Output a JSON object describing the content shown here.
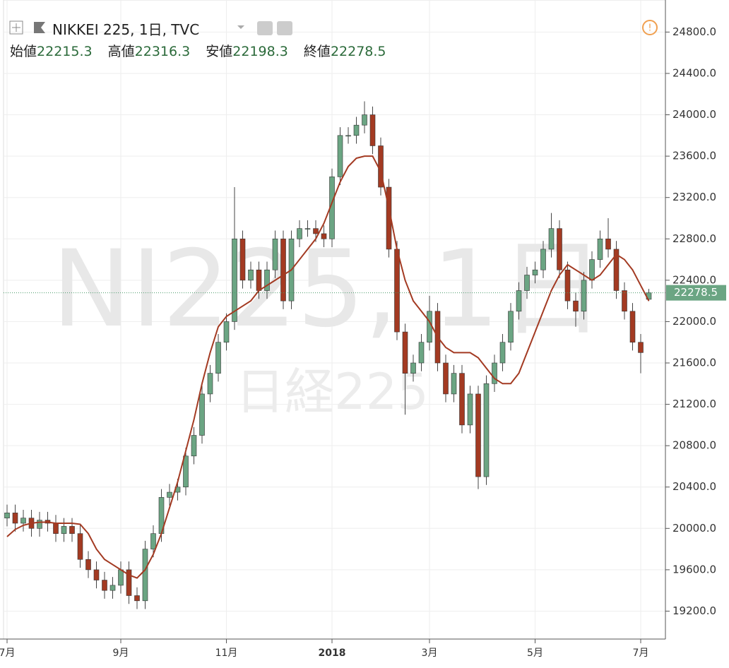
{
  "chart_data": {
    "type": "candlestick",
    "title": "NIKKEI 225, 1日, TVC",
    "ohlc_labels": {
      "open": "始値",
      "high": "高値",
      "low": "安値",
      "close": "終値"
    },
    "watermark": "NI225, 1日",
    "watermark_sub": "日経225",
    "up_color": "#6ba583",
    "down_color": "#a33a22",
    "categories": [
      "7月",
      null,
      null,
      null,
      null,
      null,
      null,
      null,
      null,
      null,
      null,
      null,
      null,
      null,
      "9月",
      null,
      null,
      null,
      null,
      null,
      null,
      null,
      null,
      null,
      null,
      null,
      null,
      "11月",
      null,
      null,
      null,
      null,
      null,
      null,
      null,
      null,
      null,
      null,
      null,
      null,
      "2018",
      null,
      null,
      null,
      null,
      null,
      null,
      null,
      null,
      null,
      null,
      null,
      "3月",
      null,
      null,
      null,
      null,
      null,
      null,
      null,
      null,
      null,
      null,
      null,
      null,
      "5月",
      null,
      null,
      null,
      null,
      null,
      null,
      null,
      null,
      null,
      null,
      null,
      null,
      "7月",
      null
    ],
    "open": [
      20100,
      20150,
      20050,
      20100,
      20000,
      20080,
      20050,
      19950,
      20020,
      19950,
      19700,
      19600,
      19500,
      19400,
      19450,
      19600,
      19350,
      19300,
      19800,
      19950,
      20300,
      20350,
      20400,
      20700,
      20900,
      21300,
      21500,
      21800,
      22000,
      22800,
      22400,
      22500,
      22300,
      22500,
      22800,
      22200,
      22800,
      22900,
      22900,
      22850,
      22800,
      23400,
      23800,
      23800,
      23900,
      24000,
      23700,
      23300,
      22700,
      21900,
      21500,
      21600,
      21800,
      22100,
      21600,
      21300,
      21500,
      21000,
      21300,
      20500,
      21400,
      21600,
      21800,
      22100,
      22300,
      22450,
      22500,
      22700,
      22900,
      22500,
      22200,
      22100,
      22400,
      22600,
      22800,
      22700,
      22300,
      22100,
      21800,
      22215.3
    ],
    "high": [
      20230,
      20230,
      20180,
      20180,
      20160,
      20160,
      20130,
      20100,
      20100,
      20030,
      19780,
      19680,
      19580,
      19530,
      19680,
      19680,
      19430,
      19880,
      20030,
      20380,
      20430,
      20480,
      20780,
      20980,
      21380,
      21580,
      21880,
      22080,
      23300,
      22880,
      22580,
      22580,
      22580,
      22880,
      22880,
      22880,
      22980,
      22980,
      22980,
      22930,
      23480,
      23880,
      23880,
      23980,
      24130,
      24080,
      23780,
      23380,
      22780,
      21980,
      21680,
      21880,
      22250,
      22180,
      21680,
      21580,
      21580,
      21380,
      21380,
      21480,
      21680,
      21880,
      22180,
      22380,
      22530,
      22580,
      22780,
      23050,
      22980,
      22580,
      22280,
      22480,
      22680,
      22880,
      23000,
      22780,
      22380,
      22180,
      21880,
      22316.3
    ],
    "low": [
      20020,
      19970,
      19970,
      19920,
      19920,
      19970,
      19870,
      19870,
      19870,
      19620,
      19520,
      19420,
      19320,
      19320,
      19370,
      19270,
      19220,
      19220,
      19720,
      19870,
      20220,
      20270,
      20320,
      20620,
      20820,
      21220,
      21420,
      21720,
      21920,
      22320,
      22320,
      22220,
      22220,
      22420,
      22120,
      22120,
      22720,
      22820,
      22770,
      22720,
      22720,
      23320,
      23720,
      23720,
      23820,
      23620,
      23220,
      22620,
      21820,
      21100,
      21420,
      21520,
      21720,
      21520,
      21220,
      21220,
      20920,
      20920,
      20380,
      20420,
      21320,
      21520,
      21720,
      22020,
      22220,
      22370,
      22420,
      22620,
      22420,
      22120,
      21950,
      22020,
      22320,
      22520,
      22620,
      22220,
      22020,
      21720,
      21500,
      22198.3
    ],
    "close": [
      20150,
      20050,
      20100,
      20000,
      20080,
      20050,
      19950,
      20020,
      19950,
      19700,
      19600,
      19500,
      19400,
      19450,
      19600,
      19350,
      19300,
      19800,
      19950,
      20300,
      20350,
      20400,
      20700,
      20900,
      21300,
      21500,
      21800,
      22000,
      22800,
      22400,
      22500,
      22300,
      22500,
      22800,
      22200,
      22800,
      22900,
      22900,
      22850,
      22800,
      23400,
      23800,
      23800,
      23900,
      24000,
      23700,
      23300,
      22700,
      21900,
      21500,
      21600,
      21800,
      22100,
      21600,
      21300,
      21500,
      21000,
      21300,
      20500,
      21400,
      21600,
      21800,
      22100,
      22300,
      22450,
      22500,
      22700,
      22900,
      22500,
      22200,
      22100,
      22400,
      22600,
      22800,
      22700,
      22300,
      22100,
      21800,
      21700,
      22278.5
    ],
    "ma": {
      "color": "#a33a22",
      "values": [
        19920,
        19990,
        20030,
        20050,
        20060,
        20060,
        20050,
        20050,
        20050,
        20040,
        19950,
        19800,
        19700,
        19650,
        19600,
        19550,
        19520,
        19600,
        19750,
        19950,
        20200,
        20450,
        20750,
        21050,
        21400,
        21700,
        21950,
        22050,
        22100,
        22150,
        22200,
        22300,
        22350,
        22400,
        22450,
        22500,
        22600,
        22700,
        22800,
        22950,
        23150,
        23350,
        23500,
        23580,
        23600,
        23600,
        23450,
        23100,
        22700,
        22400,
        22200,
        22100,
        22000,
        21850,
        21750,
        21700,
        21700,
        21700,
        21650,
        21550,
        21450,
        21400,
        21400,
        21500,
        21700,
        21900,
        22100,
        22300,
        22450,
        22550,
        22500,
        22450,
        22400,
        22450,
        22550,
        22650,
        22600,
        22500,
        22350,
        22200
      ]
    },
    "ylim": [
      18930,
      25110
    ],
    "yticks": [
      {
        "value": 24800,
        "label": "24800.0"
      },
      {
        "value": 24400,
        "label": "24400.0"
      },
      {
        "value": 24000,
        "label": "24000.0"
      },
      {
        "value": 23600,
        "label": "23600.0"
      },
      {
        "value": 23200,
        "label": "23200.0"
      },
      {
        "value": 22800,
        "label": "22800.0"
      },
      {
        "value": 22400,
        "label": "22400.0"
      },
      {
        "value": 22000,
        "label": "22000.0"
      },
      {
        "value": 21600,
        "label": "21600.0"
      },
      {
        "value": 21200,
        "label": "21200.0"
      },
      {
        "value": 20800,
        "label": "20800.0"
      },
      {
        "value": 20400,
        "label": "20400.0"
      },
      {
        "value": 20000,
        "label": "20000.0"
      },
      {
        "value": 19600,
        "label": "19600.0"
      },
      {
        "value": 19200,
        "label": "19200.0"
      }
    ],
    "grid": true
  }
}
